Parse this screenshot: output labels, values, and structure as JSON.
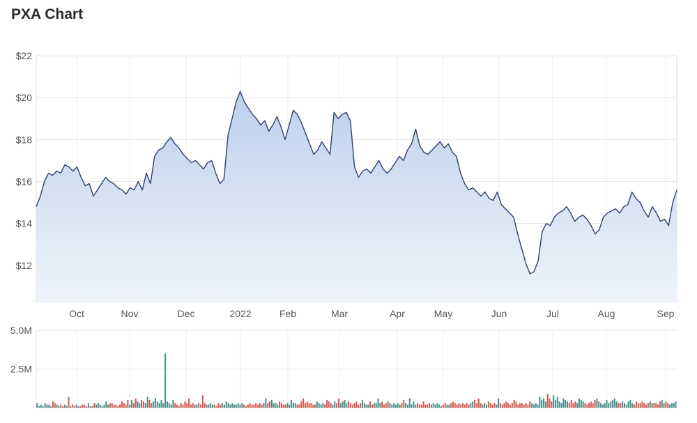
{
  "title": "PXA Chart",
  "chart_data": [
    {
      "type": "area",
      "series": [
        {
          "color": "#2d3f6e",
          "values": [
            14.8,
            15.3,
            16.0,
            16.4,
            16.3,
            16.5,
            16.4,
            16.8,
            16.7,
            16.5,
            16.7,
            16.2,
            15.8,
            15.9,
            15.3,
            15.6,
            15.9,
            16.2,
            16.0,
            15.9,
            15.7,
            15.6,
            15.4,
            15.7,
            15.6,
            16.0,
            15.6,
            16.4,
            15.9,
            17.2,
            17.5,
            17.6,
            17.9,
            18.1,
            17.8,
            17.6,
            17.3,
            17.1,
            16.9,
            17.0,
            16.8,
            16.6,
            16.9,
            17.0,
            16.4,
            15.9,
            16.1,
            18.2,
            19.0,
            19.8,
            20.3,
            19.8,
            19.5,
            19.2,
            19.0,
            18.7,
            18.9,
            18.4,
            18.7,
            19.1,
            18.6,
            18.0,
            18.7,
            19.4,
            19.2,
            18.8,
            18.3,
            17.8,
            17.3,
            17.5,
            17.9,
            17.6,
            17.3,
            19.3,
            19.0,
            19.2,
            19.3,
            18.9,
            16.7,
            16.2,
            16.5,
            16.6,
            16.4,
            16.7,
            17.0,
            16.6,
            16.4,
            16.6,
            16.9,
            17.2,
            17.0,
            17.5,
            17.8,
            18.5,
            17.7,
            17.4,
            17.3,
            17.5,
            17.7,
            17.9,
            17.6,
            17.8,
            17.4,
            17.2,
            16.4,
            15.9,
            15.6,
            15.7,
            15.5,
            15.3,
            15.5,
            15.2,
            15.1,
            15.5,
            14.9,
            14.7,
            14.5,
            14.3,
            13.5,
            12.8,
            12.1,
            11.6,
            11.7,
            12.2,
            13.6,
            14.0,
            13.9,
            14.3,
            14.5,
            14.6,
            14.8,
            14.5,
            14.1,
            14.3,
            14.4,
            14.2,
            13.9,
            13.5,
            13.7,
            14.3,
            14.5,
            14.6,
            14.7,
            14.5,
            14.8,
            14.9,
            15.5,
            15.2,
            15.0,
            14.6,
            14.3,
            14.8,
            14.5,
            14.1,
            14.2,
            13.9,
            15.0,
            15.6
          ]
        }
      ],
      "x_axis_labels": [
        "Oct",
        "Nov",
        "Dec",
        "2022",
        "Feb",
        "Mar",
        "Apr",
        "May",
        "Jun",
        "Jul",
        "Aug",
        "Sep"
      ],
      "y_ticks": [
        "$12",
        "$14",
        "$16",
        "$18",
        "$20",
        "$22"
      ],
      "ylim": [
        10.2,
        22
      ],
      "grid": true
    },
    {
      "type": "bar",
      "up_color": "#4a8f8a",
      "down_color": "#d45a52",
      "y_ticks": [
        "2.5M",
        "5.0M"
      ],
      "ylim": [
        0,
        5.0
      ],
      "values": [
        0.3,
        0.1,
        0.2,
        0.1,
        0.3,
        0.2,
        0.2,
        0.1,
        0.4,
        0.3,
        0.2,
        0.1,
        0.2,
        0.1,
        0.2,
        0.1,
        0.7,
        0.1,
        0.2,
        0.1,
        0.2,
        0.1,
        0.1,
        0.2,
        0.2,
        0.1,
        0.3,
        0.1,
        0.1,
        0.3,
        0.2,
        0.3,
        0.2,
        0.1,
        0.2,
        0.4,
        0.2,
        0.3,
        0.3,
        0.2,
        0.2,
        0.1,
        0.2,
        0.4,
        0.3,
        0.2,
        0.5,
        0.2,
        0.5,
        0.3,
        0.6,
        0.4,
        0.3,
        0.5,
        0.4,
        0.3,
        0.7,
        0.5,
        0.3,
        0.4,
        0.6,
        0.4,
        0.3,
        0.5,
        0.3,
        3.5,
        0.4,
        0.3,
        0.2,
        0.5,
        0.3,
        0.2,
        0.1,
        0.3,
        0.2,
        0.4,
        0.3,
        0.6,
        0.2,
        0.3,
        0.2,
        0.2,
        0.3,
        0.2,
        0.8,
        0.3,
        0.2,
        0.2,
        0.3,
        0.2,
        0.2,
        0.1,
        0.3,
        0.2,
        0.3,
        0.2,
        0.4,
        0.3,
        0.2,
        0.3,
        0.2,
        0.2,
        0.3,
        0.2,
        0.3,
        0.2,
        0.1,
        0.2,
        0.3,
        0.2,
        0.2,
        0.3,
        0.2,
        0.3,
        0.2,
        0.3,
        0.6,
        0.3,
        0.4,
        0.5,
        0.3,
        0.3,
        0.2,
        0.4,
        0.3,
        0.2,
        0.2,
        0.3,
        0.2,
        0.5,
        0.3,
        0.3,
        0.2,
        0.2,
        0.4,
        0.6,
        0.3,
        0.4,
        0.3,
        0.3,
        0.2,
        0.2,
        0.4,
        0.3,
        0.2,
        0.3,
        0.2,
        0.5,
        0.4,
        0.3,
        0.2,
        0.4,
        0.3,
        0.6,
        0.3,
        0.4,
        0.5,
        0.3,
        0.4,
        0.3,
        0.2,
        0.3,
        0.4,
        0.2,
        0.3,
        0.5,
        0.3,
        0.2,
        0.2,
        0.4,
        0.2,
        0.3,
        0.3,
        0.6,
        0.3,
        0.4,
        0.2,
        0.3,
        0.4,
        0.3,
        0.2,
        0.3,
        0.2,
        0.3,
        0.2,
        0.3,
        0.5,
        0.3,
        0.2,
        0.6,
        0.2,
        0.4,
        0.2,
        0.3,
        0.2,
        0.2,
        0.4,
        0.2,
        0.2,
        0.3,
        0.2,
        0.3,
        0.2,
        0.3,
        0.2,
        0.1,
        0.2,
        0.3,
        0.2,
        0.2,
        0.3,
        0.4,
        0.3,
        0.2,
        0.3,
        0.2,
        0.3,
        0.2,
        0.3,
        0.2,
        0.3,
        0.4,
        0.5,
        0.3,
        0.6,
        0.3,
        0.2,
        0.3,
        0.2,
        0.4,
        0.3,
        0.2,
        0.3,
        0.2,
        0.6,
        0.3,
        0.2,
        0.3,
        0.4,
        0.3,
        0.2,
        0.3,
        0.5,
        0.4,
        0.2,
        0.3,
        0.3,
        0.2,
        0.3,
        0.2,
        0.4,
        0.3,
        0.2,
        0.3,
        0.2,
        0.7,
        0.5,
        0.6,
        0.4,
        0.9,
        0.6,
        0.4,
        0.8,
        0.5,
        0.7,
        0.4,
        0.3,
        0.6,
        0.5,
        0.4,
        0.3,
        0.5,
        0.3,
        0.4,
        0.3,
        0.6,
        0.5,
        0.4,
        0.3,
        0.2,
        0.3,
        0.4,
        0.3,
        0.5,
        0.6,
        0.4,
        0.3,
        0.2,
        0.3,
        0.5,
        0.3,
        0.4,
        0.5,
        0.6,
        0.4,
        0.3,
        0.3,
        0.4,
        0.3,
        0.2,
        0.4,
        0.5,
        0.3,
        0.2,
        0.4,
        0.3,
        0.3,
        0.4,
        0.3,
        0.2,
        0.3,
        0.4,
        0.3,
        0.3,
        0.3,
        0.2,
        0.4,
        0.5,
        0.3,
        0.4,
        0.3,
        0.2,
        0.3,
        0.3,
        0.4
      ]
    }
  ]
}
